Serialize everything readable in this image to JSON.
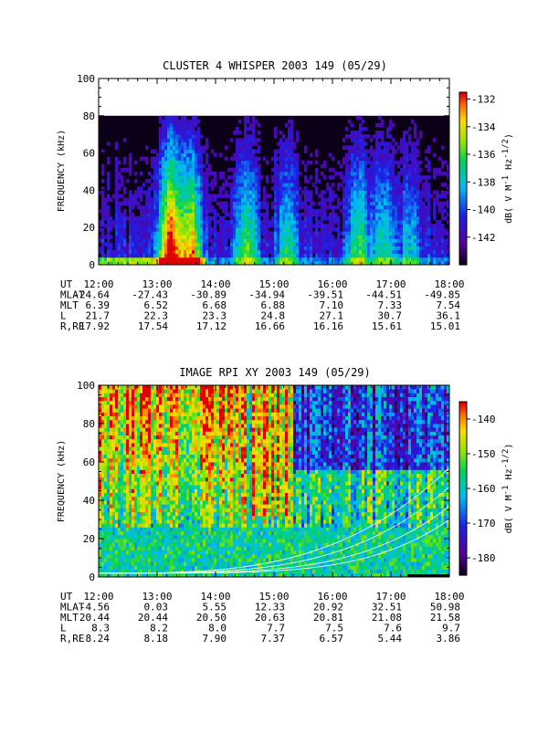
{
  "chart_data": [
    {
      "type": "heatmap",
      "title": "CLUSTER 4 WHISPER 2003 149 (05/29)",
      "ylabel": "FREQUENCY (kHz)",
      "ylim": [
        0,
        100
      ],
      "yticks": [
        "0",
        "20",
        "40",
        "60",
        "80",
        "100"
      ],
      "xlim": [
        "12:00",
        "18:00"
      ],
      "xticks": [
        "12:00",
        "13:00",
        "14:00",
        "15:00",
        "16:00",
        "17:00",
        "18:00"
      ],
      "data_ceiling_khz": 80,
      "colorbar": {
        "label": "dB( V M",
        "label_sup1": "-1",
        "label_mid": " Hz",
        "label_sup2": "-1/2",
        "label_end": ")",
        "range": [
          -144,
          -131.5
        ],
        "ticks": [
          "-132",
          "-134",
          "-136",
          "-138",
          "-140",
          "-142"
        ]
      },
      "ephemeris": {
        "labels": [
          "UT",
          "MLAT",
          "MLT",
          "L",
          "R,RE"
        ],
        "rows": [
          [
            "12:00",
            "13:00",
            "14:00",
            "15:00",
            "16:00",
            "17:00",
            "18:00"
          ],
          [
            "-24.64",
            "-27.43",
            "-30.89",
            "-34.94",
            "-39.51",
            "-44.51",
            "-49.85"
          ],
          [
            "6.39",
            "6.52",
            "6.68",
            "6.88",
            "7.10",
            "7.33",
            "7.54"
          ],
          [
            "21.7",
            "22.3",
            "23.3",
            "24.8",
            "27.1",
            "30.7",
            "36.1"
          ],
          [
            "17.92",
            "17.54",
            "17.12",
            "16.66",
            "16.16",
            "15.61",
            "15.01"
          ]
        ]
      }
    },
    {
      "type": "heatmap",
      "title": "IMAGE RPI XY 2003 149 (05/29)",
      "ylabel": "FREQUENCY (kHz)",
      "ylim": [
        0,
        100
      ],
      "yticks": [
        "0",
        "20",
        "40",
        "60",
        "80",
        "100"
      ],
      "xlim": [
        "12:00",
        "18:00"
      ],
      "xticks": [
        "12:00",
        "13:00",
        "14:00",
        "15:00",
        "16:00",
        "17:00",
        "18:00"
      ],
      "colorbar": {
        "label": "dB( V M",
        "label_sup1": "-1",
        "label_mid": " Hz",
        "label_sup2": "-1/2",
        "label_end": ")",
        "range": [
          -185,
          -135
        ],
        "ticks": [
          "-140",
          "-150",
          "-160",
          "-170",
          "-180"
        ]
      },
      "ephemeris": {
        "labels": [
          "UT",
          "MLAT",
          "MLT",
          "L",
          "R,RE"
        ],
        "rows": [
          [
            "12:00",
            "13:00",
            "14:00",
            "15:00",
            "16:00",
            "17:00",
            "18:00"
          ],
          [
            "-4.56",
            "0.03",
            "5.55",
            "12.33",
            "20.92",
            "32.51",
            "50.98"
          ],
          [
            "20.44",
            "20.44",
            "20.50",
            "20.63",
            "20.81",
            "21.08",
            "21.58"
          ],
          [
            "8.3",
            "8.2",
            "8.0",
            "7.7",
            "7.5",
            "7.6",
            "9.7"
          ],
          [
            "8.24",
            "8.18",
            "7.90",
            "7.37",
            "6.57",
            "5.44",
            "3.86"
          ]
        ]
      }
    }
  ]
}
